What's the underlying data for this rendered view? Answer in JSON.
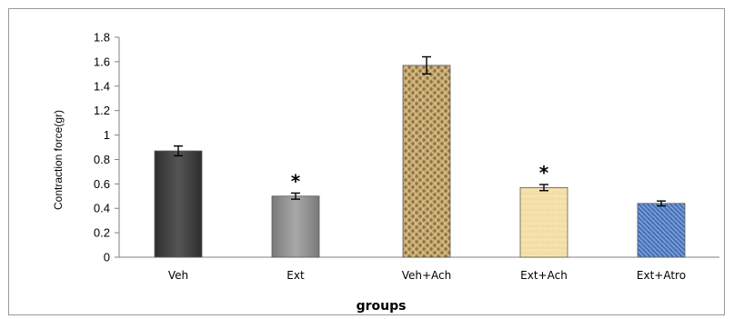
{
  "chart_data": {
    "type": "bar",
    "categories": [
      "Veh",
      "Ext",
      "Veh+Ach",
      "Ext+Ach",
      "Ext+Atro"
    ],
    "values": [
      0.87,
      0.5,
      1.57,
      0.57,
      0.44
    ],
    "errors": [
      0.04,
      0.025,
      0.07,
      0.025,
      0.02
    ],
    "significance": [
      "",
      "*",
      "",
      "*",
      ""
    ],
    "xlabel": "groups",
    "ylabel": "Contraction force(gr)",
    "ylim": [
      0,
      1.8
    ],
    "yticks": [
      0,
      0.2,
      0.4,
      0.6,
      0.8,
      1,
      1.2,
      1.4,
      1.6,
      1.8
    ],
    "bar_colors": [
      "#3d3d3d",
      "#8a8a8a",
      "#b89a63",
      "#f0d9a0",
      "#4f79bd"
    ],
    "grid": false,
    "legend": "none"
  }
}
